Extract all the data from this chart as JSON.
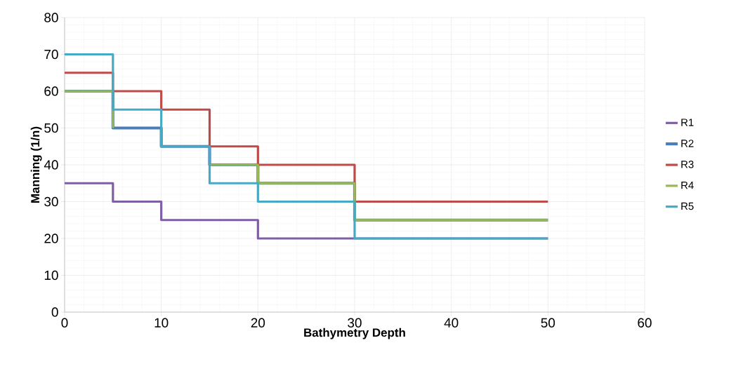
{
  "chart_data": {
    "type": "step",
    "xlabel": "Bathymetry Depth",
    "ylabel": "Manning (1/n)",
    "xlim": [
      0,
      60
    ],
    "xticks": [
      0,
      10,
      20,
      30,
      40,
      50,
      60
    ],
    "ylim": [
      0,
      80
    ],
    "yticks": [
      0,
      10,
      20,
      30,
      40,
      50,
      60,
      70,
      80
    ],
    "grid": true,
    "legend": "right",
    "marker": "none",
    "line_style": "solid",
    "series": [
      {
        "name": "R1",
        "color": "#7f5fa3",
        "x": [
          0,
          5,
          10,
          15,
          20,
          30,
          50
        ],
        "values": [
          35,
          30,
          25,
          25,
          20,
          20,
          20
        ]
      },
      {
        "name": "R2",
        "color": "#4a7ebb",
        "x": [
          0,
          5,
          10,
          15,
          20,
          30,
          50
        ],
        "values": [
          60,
          50,
          45,
          40,
          35,
          25,
          25
        ]
      },
      {
        "name": "R3",
        "color": "#be4b48",
        "x": [
          0,
          5,
          10,
          15,
          20,
          30,
          50
        ],
        "values": [
          65,
          60,
          55,
          45,
          40,
          30,
          30
        ]
      },
      {
        "name": "R4",
        "color": "#98b954",
        "x": [
          0,
          5,
          10,
          15,
          20,
          30,
          50
        ],
        "values": [
          60,
          50,
          null,
          40,
          35,
          25,
          25
        ]
      },
      {
        "name": "R5",
        "color": "#46aac5",
        "x": [
          0,
          5,
          10,
          15,
          20,
          30,
          50
        ],
        "values": [
          70,
          55,
          45,
          35,
          30,
          20,
          20
        ]
      }
    ]
  }
}
